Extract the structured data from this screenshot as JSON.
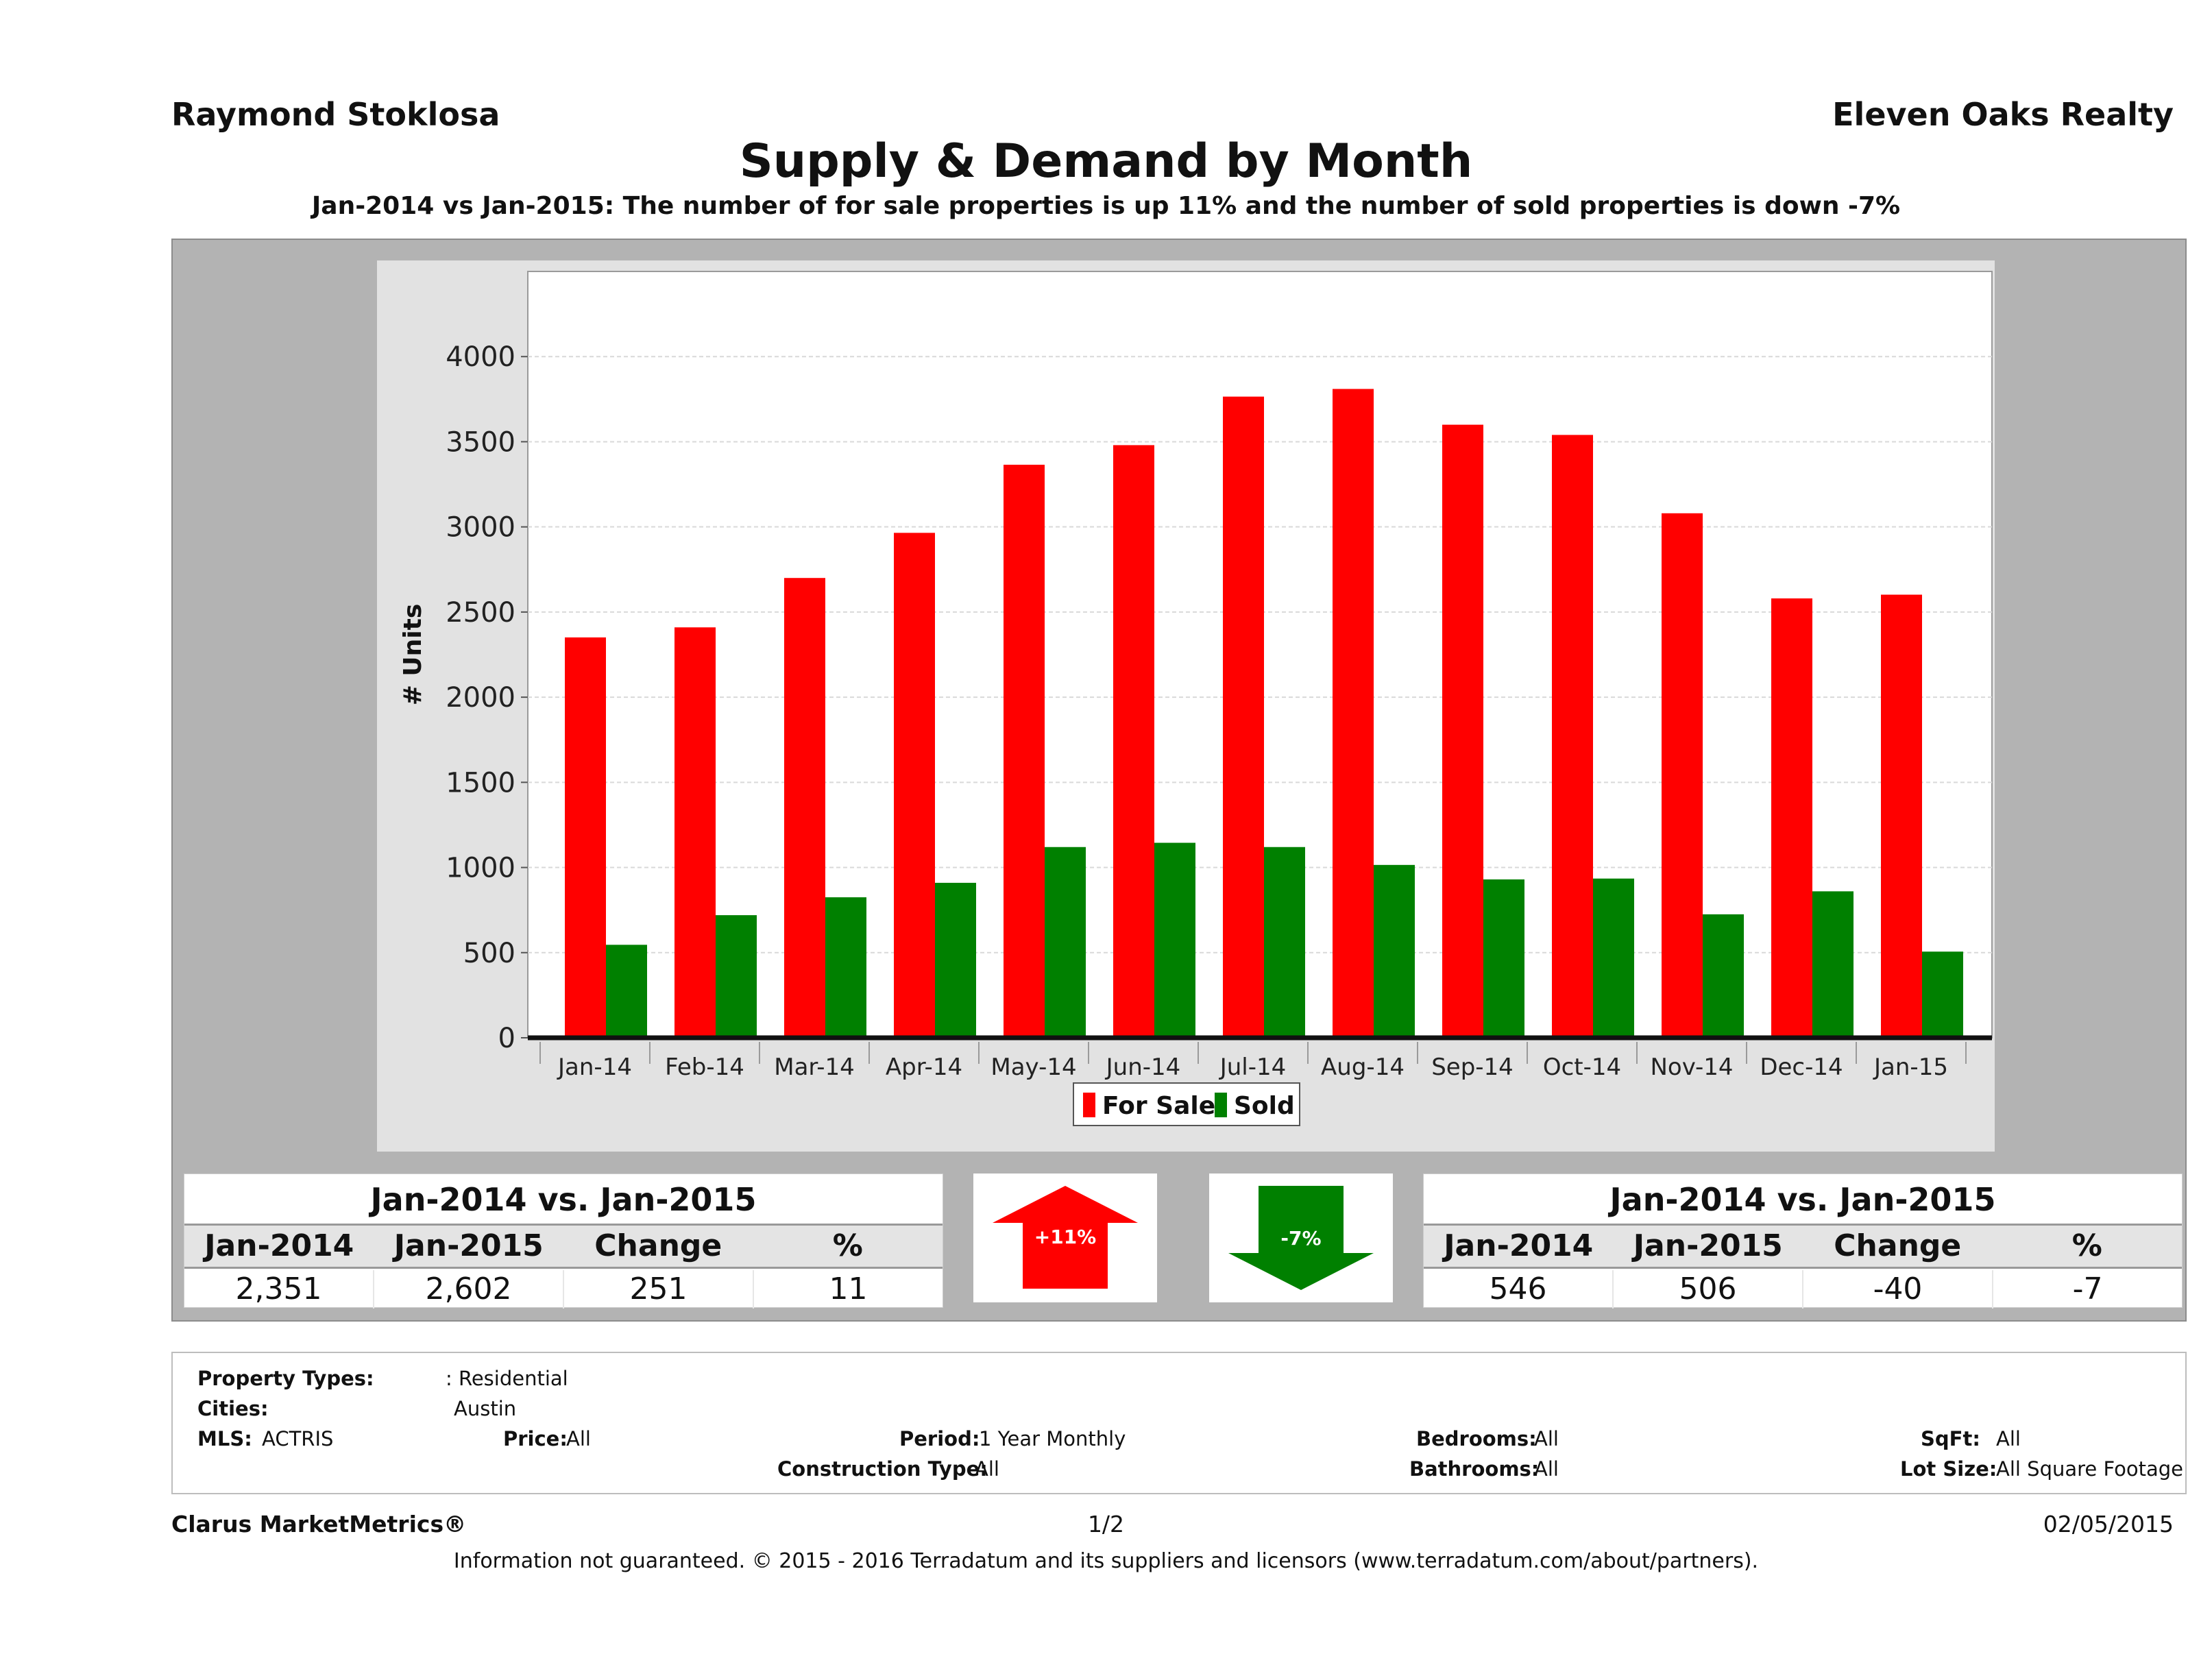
{
  "header": {
    "agent": "Raymond Stoklosa",
    "office": "Eleven Oaks Realty",
    "title": "Supply & Demand by Month",
    "subtitle": "Jan-2014 vs Jan-2015: The number of for sale properties is up 11% and the number of sold properties is down -7%"
  },
  "chart_data": {
    "type": "bar",
    "categories": [
      "Jan-14",
      "Feb-14",
      "Mar-14",
      "Apr-14",
      "May-14",
      "Jun-14",
      "Jul-14",
      "Aug-14",
      "Sep-14",
      "Oct-14",
      "Nov-14",
      "Dec-14",
      "Jan-15"
    ],
    "series": [
      {
        "name": "For Sale",
        "color": "#ff0000",
        "values": [
          2351,
          2410,
          2700,
          2965,
          3365,
          3480,
          3765,
          3810,
          3600,
          3540,
          3080,
          2580,
          2602
        ]
      },
      {
        "name": "Sold",
        "color": "#008000",
        "values": [
          546,
          720,
          825,
          910,
          1120,
          1145,
          1120,
          1015,
          930,
          935,
          725,
          860,
          506
        ]
      }
    ],
    "ylabel": "# Units",
    "ylim": [
      0,
      4500
    ],
    "yticks": [
      0,
      500,
      1000,
      1500,
      2000,
      2500,
      3000,
      3500,
      4000
    ],
    "grid": true,
    "legend_position": "bottom-center"
  },
  "for_sale_stats": {
    "title": "Jan-2014 vs. Jan-2015",
    "headers": [
      "Jan-2014",
      "Jan-2015",
      "Change",
      "%"
    ],
    "values": [
      "2,351",
      "2,602",
      "251",
      "11"
    ]
  },
  "sold_stats": {
    "title": "Jan-2014 vs. Jan-2015",
    "headers": [
      "Jan-2014",
      "Jan-2015",
      "Change",
      "%"
    ],
    "values": [
      "546",
      "506",
      "-40",
      "-7"
    ]
  },
  "arrows": {
    "up_label": "+11%",
    "up_color": "#ff0000",
    "down_label": "-7%",
    "down_color": "#008000"
  },
  "filters": {
    "property_types_label": "Property Types:",
    "property_types_value": ": Residential",
    "cities_label": "Cities:",
    "cities_value": "Austin",
    "mls_label": "MLS:",
    "mls_value": "ACTRIS",
    "price_label": "Price:",
    "price_value": "All",
    "period_label": "Period:",
    "period_value": "1 Year Monthly",
    "construction_label": "Construction Type:",
    "construction_value": "All",
    "bedrooms_label": "Bedrooms:",
    "bedrooms_value": "All",
    "bathrooms_label": "Bathrooms:",
    "bathrooms_value": "All",
    "sqft_label": "SqFt:",
    "sqft_value": "All",
    "lotsize_label": "Lot Size:",
    "lotsize_value": "All Square Footage"
  },
  "footer": {
    "brand": "Clarus MarketMetrics®",
    "page": "1/2",
    "date": "02/05/2015",
    "disclaimer": "Information not guaranteed. © 2015 - 2016 Terradatum and its suppliers and licensors (www.terradatum.com/about/partners)."
  }
}
